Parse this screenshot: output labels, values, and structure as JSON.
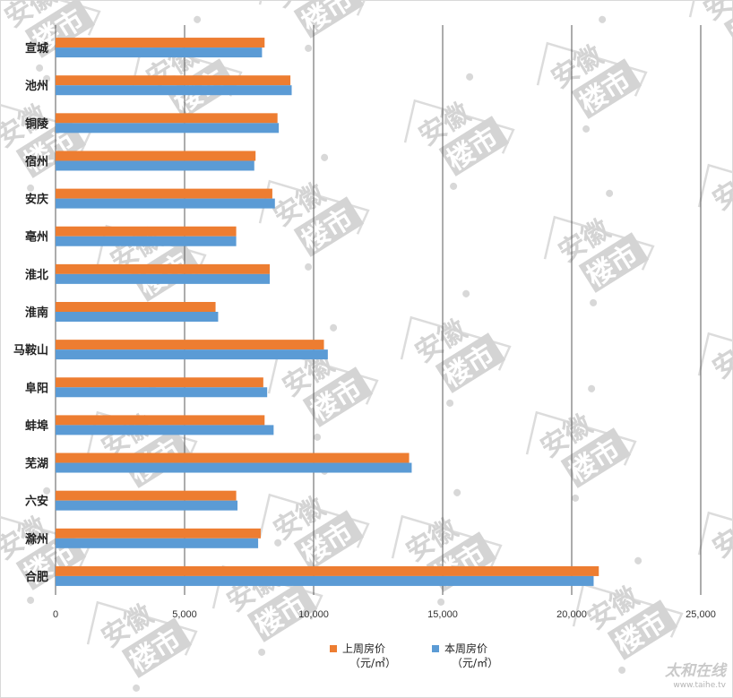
{
  "chart_data": {
    "type": "bar",
    "orientation": "horizontal",
    "categories": [
      "宣城",
      "池州",
      "铜陵",
      "宿州",
      "安庆",
      "亳州",
      "淮北",
      "淮南",
      "马鞍山",
      "阜阳",
      "蚌埠",
      "芜湖",
      "六安",
      "滁州",
      "合肥"
    ],
    "series": [
      {
        "name": "上周房价",
        "unit": "（元/㎡）",
        "color": "#ed7d31",
        "values": [
          8100,
          9100,
          8600,
          7750,
          8400,
          7000,
          8300,
          6200,
          10400,
          8050,
          8100,
          13700,
          7000,
          7950,
          21050
        ]
      },
      {
        "name": "本周房价",
        "unit": "（元/㎡）",
        "color": "#5b9bd5",
        "values": [
          8000,
          9150,
          8650,
          7700,
          8500,
          7000,
          8300,
          6300,
          10550,
          8200,
          8450,
          13800,
          7050,
          7850,
          20850
        ]
      }
    ],
    "xlim": [
      0,
      25000
    ],
    "xticks": [
      "0",
      "5,000",
      "10,000",
      "15,000",
      "20,000",
      "25,000"
    ],
    "xtick_values": [
      0,
      5000,
      10000,
      15000,
      20000,
      25000
    ],
    "grid": true,
    "legend_position": "bottom"
  },
  "watermark": {
    "text": "安徽楼市",
    "corner_brand": "太和在线",
    "corner_url": "www.taihe.tv"
  }
}
